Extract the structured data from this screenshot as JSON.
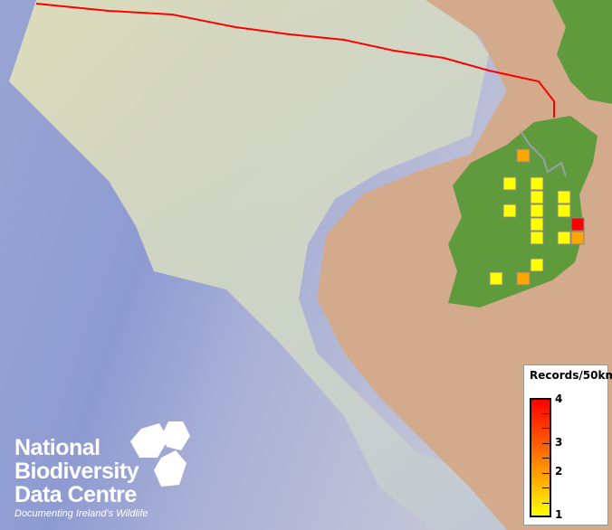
{
  "legend": {
    "title": "Records/50km",
    "labels": [
      "4",
      "3",
      "2",
      "1"
    ],
    "range": [
      1,
      4
    ],
    "colors": {
      "low": "#ffff00",
      "mid": "#ff8c00",
      "high": "#ff0000"
    }
  },
  "logo": {
    "lines": [
      "National",
      "Biodiversity",
      "Data Centre"
    ],
    "tagline": "Documenting Ireland's Wildlife"
  },
  "records": [
    2,
    1,
    1,
    1,
    1,
    1,
    1,
    1,
    1,
    4,
    1,
    1,
    2,
    1,
    1,
    2
  ],
  "colors": {
    "boundary": "#ff0000",
    "land": "#5f9a3c",
    "deep_sea": "#7f8fc8",
    "shelf": "#e6dfae",
    "continent": "#d4a98a",
    "cell_border": "#888888"
  }
}
